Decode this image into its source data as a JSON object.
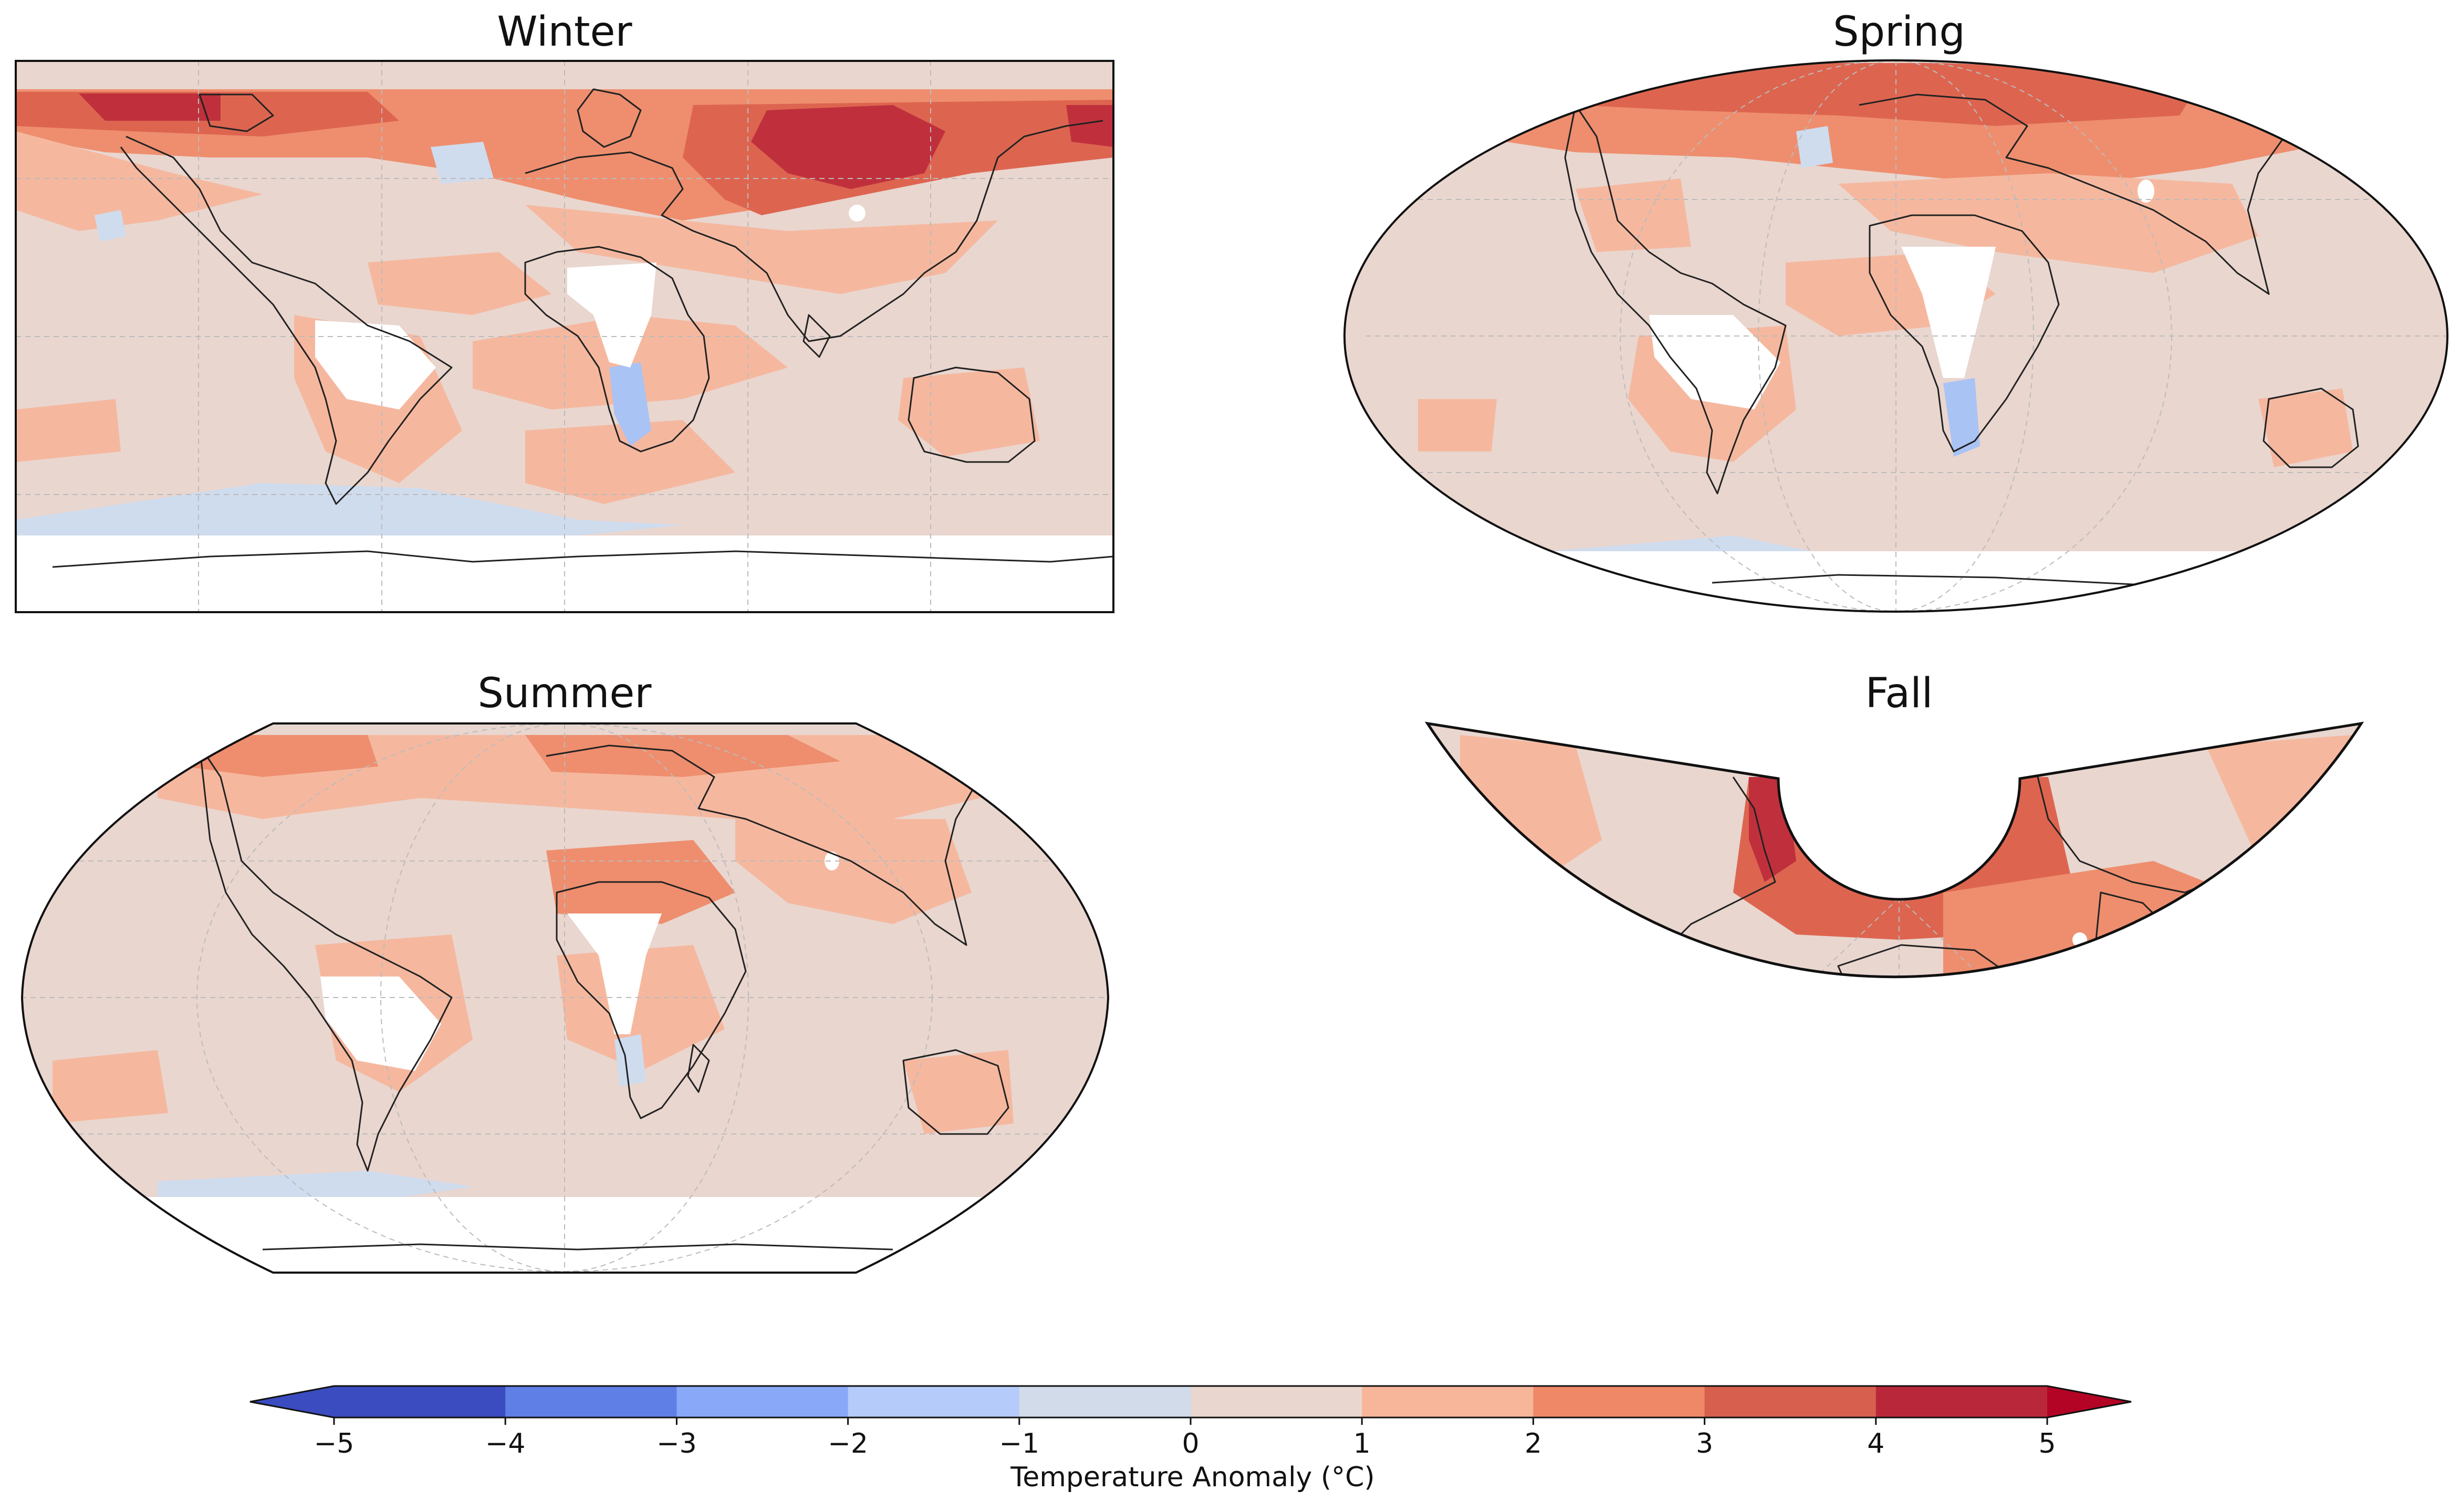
{
  "panels": [
    {
      "id": "winter",
      "title": "Winter",
      "projection": "plate-carree"
    },
    {
      "id": "spring",
      "title": "Spring",
      "projection": "mollweide"
    },
    {
      "id": "summer",
      "title": "Summer",
      "projection": "robinson"
    },
    {
      "id": "fall",
      "title": "Fall",
      "projection": "conic"
    }
  ],
  "colorbar": {
    "label": "Temperature Anomaly (°C)",
    "ticks": [
      "−5",
      "−4",
      "−3",
      "−2",
      "−1",
      "0",
      "1",
      "2",
      "3",
      "4",
      "5"
    ],
    "range": [
      -5,
      5
    ],
    "extend": "both",
    "colors": [
      "#3b4cc0",
      "#5f7ee6",
      "#89a9f8",
      "#b5cbf9",
      "#d1dbe9",
      "#e9d6cf",
      "#f7b599",
      "#ee8866",
      "#d6604d",
      "#b9283a"
    ],
    "under_color": "#3b4cc0",
    "over_color": "#b40426"
  },
  "colors": {
    "base": "#e9d6cf",
    "warm1": "#f5b89f",
    "warm2": "#ee8e6e",
    "warm3": "#dd6550",
    "warm4": "#c0303c",
    "cool1": "#cfdcee",
    "cool2": "#a9c3f5",
    "nodata": "#ffffff",
    "coast": "#222222",
    "grid": "#bbbbbb"
  }
}
